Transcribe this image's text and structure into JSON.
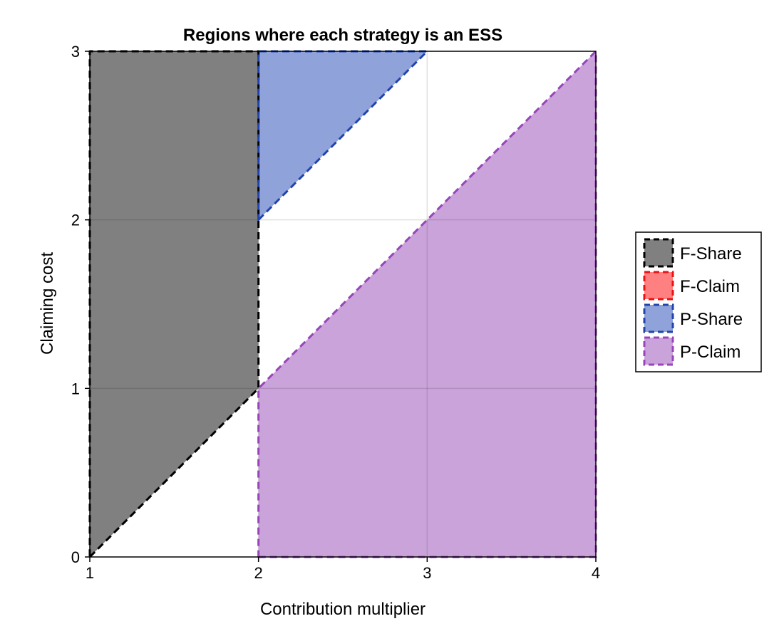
{
  "chart_data": {
    "type": "area",
    "title": "Regions where each strategy is an ESS",
    "xlabel": "Contribution multiplier",
    "ylabel": "Claiming cost",
    "xlim": [
      1,
      4
    ],
    "ylim": [
      0,
      3
    ],
    "xticks": [
      1,
      2,
      3,
      4
    ],
    "yticks": [
      0,
      1,
      2,
      3
    ],
    "grid": true,
    "legend_position": "right",
    "series": [
      {
        "name": "F-Share",
        "fill": "#808080",
        "stroke": "#000000",
        "polygon": [
          [
            1,
            0
          ],
          [
            2,
            1
          ],
          [
            2,
            3
          ],
          [
            1,
            3
          ]
        ]
      },
      {
        "name": "F-Claim",
        "fill": "#ff8080",
        "stroke": "#ee1111",
        "polygon": []
      },
      {
        "name": "P-Share",
        "fill": "#8fa2da",
        "stroke": "#2244aa",
        "polygon": [
          [
            2,
            2
          ],
          [
            3,
            3
          ],
          [
            2,
            3
          ]
        ]
      },
      {
        "name": "P-Claim",
        "fill": "#caa3db",
        "stroke": "#9944bb",
        "polygon": [
          [
            2,
            0
          ],
          [
            4,
            0
          ],
          [
            4,
            3
          ],
          [
            2,
            1
          ]
        ]
      }
    ]
  }
}
